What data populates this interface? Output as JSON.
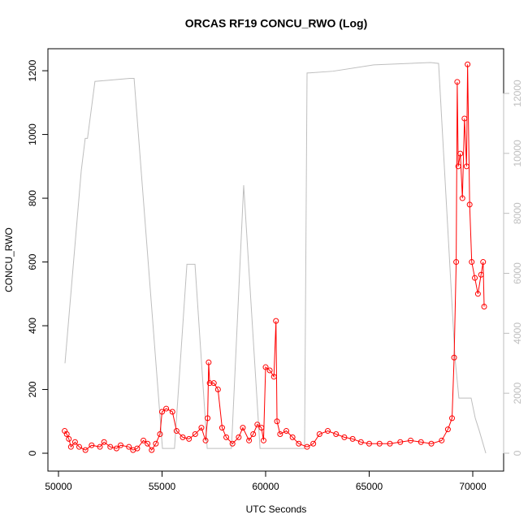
{
  "chart_data": {
    "type": "line",
    "title": "ORCAS RF19 CONCU_RWO (Log)",
    "x_label": "UTC Seconds",
    "y_label": "CONCU_RWO",
    "xlim": [
      49490,
      71490
    ],
    "xticks": [
      50000,
      55000,
      60000,
      65000,
      70000
    ],
    "ylim": [
      -56,
      1269
    ],
    "yticks": [
      0,
      200,
      400,
      600,
      800,
      1000,
      1200
    ],
    "y2lim": [
      -596,
      13490
    ],
    "y2ticks": [
      0,
      2000,
      4000,
      6000,
      8000,
      10000,
      12000
    ],
    "series": [
      {
        "axis": "y2",
        "color": "#bebebe",
        "markers": false,
        "x": [
          50314,
          51100,
          51290,
          51400,
          51760,
          53450,
          53650,
          55020,
          55600,
          56200,
          56590,
          57180,
          58350,
          58940,
          59730,
          61880,
          62000,
          63250,
          65220,
          67960,
          68350,
          69140,
          69330,
          69720,
          69920,
          70120,
          70310,
          70630
        ],
        "values": [
          3000,
          9430,
          10500,
          10500,
          12400,
          12500,
          12500,
          160,
          160,
          6300,
          6300,
          160,
          160,
          8940,
          160,
          160,
          12680,
          12740,
          12950,
          13030,
          13000,
          3200,
          1840,
          1840,
          1840,
          1170,
          760,
          0
        ]
      },
      {
        "axis": "y",
        "color": "#ff0000",
        "markers": true,
        "x": [
          50300,
          50400,
          50500,
          50600,
          50800,
          51000,
          51300,
          51600,
          52000,
          52200,
          52500,
          52800,
          53000,
          53400,
          53600,
          53800,
          54100,
          54300,
          54500,
          54700,
          54900,
          55000,
          55200,
          55500,
          55700,
          56000,
          56300,
          56600,
          56900,
          57100,
          57200,
          57250,
          57300,
          57500,
          57700,
          57900,
          58100,
          58400,
          58700,
          58900,
          59200,
          59400,
          59600,
          59800,
          59900,
          60000,
          60200,
          60400,
          60500,
          60550,
          60700,
          61000,
          61300,
          61600,
          62000,
          62300,
          62600,
          63000,
          63400,
          63800,
          64200,
          64600,
          65000,
          65500,
          66000,
          66500,
          67000,
          67500,
          68000,
          68500,
          68800,
          69000,
          69100,
          69200,
          69250,
          69300,
          69400,
          69500,
          69600,
          69700,
          69750,
          69850,
          69950,
          70100,
          70250,
          70400,
          70500,
          70550
        ],
        "values": [
          70,
          60,
          45,
          20,
          35,
          20,
          10,
          25,
          20,
          35,
          20,
          15,
          25,
          20,
          10,
          15,
          40,
          30,
          10,
          30,
          60,
          130,
          140,
          130,
          70,
          50,
          45,
          60,
          80,
          40,
          110,
          285,
          220,
          220,
          200,
          80,
          50,
          30,
          50,
          80,
          40,
          60,
          90,
          80,
          40,
          270,
          260,
          240,
          415,
          100,
          60,
          70,
          50,
          30,
          20,
          30,
          60,
          70,
          60,
          50,
          45,
          35,
          30,
          30,
          30,
          35,
          40,
          35,
          30,
          40,
          75,
          110,
          300,
          600,
          1165,
          900,
          940,
          800,
          1050,
          900,
          1220,
          780,
          600,
          550,
          500,
          560,
          600,
          460
        ]
      }
    ]
  }
}
